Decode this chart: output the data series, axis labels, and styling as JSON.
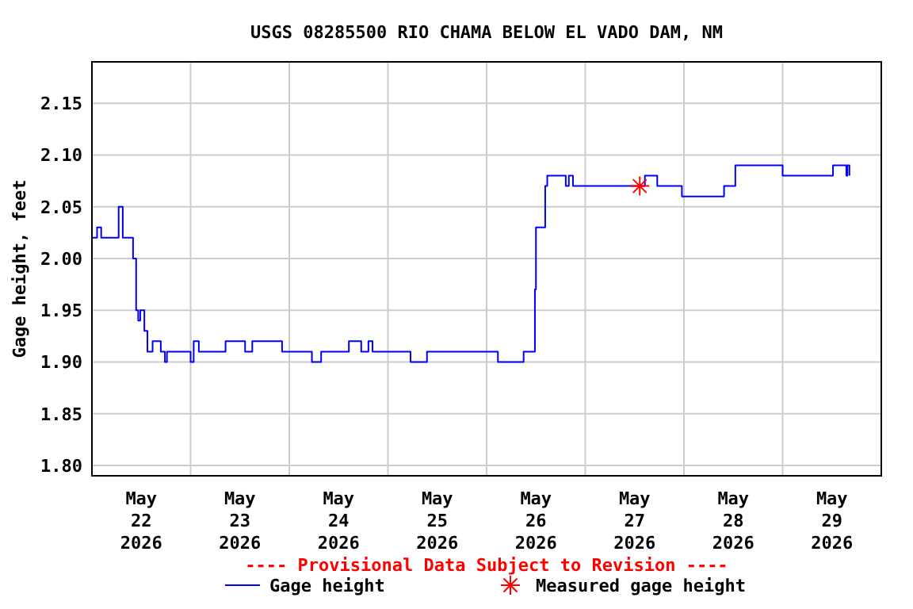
{
  "chart_data": {
    "type": "step",
    "title": "USGS 08285500 RIO CHAMA BELOW EL VADO DAM, NM",
    "ylabel": "Gage height, feet",
    "annotations": [
      "---- Provisional Data Subject to Revision ----"
    ],
    "xlim": [
      "2026-05-22T00:00",
      "2026-05-30T00:00"
    ],
    "xticks": [
      {
        "value": "2026-05-22T12:00",
        "label": "May 22 2026"
      },
      {
        "value": "2026-05-23T00:00",
        "label": null
      },
      {
        "value": "2026-05-23T12:00",
        "label": "May 23 2026"
      },
      {
        "value": "2026-05-24T00:00",
        "label": null
      },
      {
        "value": "2026-05-24T12:00",
        "label": "May 24 2026"
      },
      {
        "value": "2026-05-25T00:00",
        "label": null
      },
      {
        "value": "2026-05-25T12:00",
        "label": "May 25 2026"
      },
      {
        "value": "2026-05-26T00:00",
        "label": null
      },
      {
        "value": "2026-05-26T12:00",
        "label": "May 26 2026"
      },
      {
        "value": "2026-05-27T00:00",
        "label": null
      },
      {
        "value": "2026-05-27T12:00",
        "label": "May 27 2026"
      },
      {
        "value": "2026-05-28T00:00",
        "label": null
      },
      {
        "value": "2026-05-28T12:00",
        "label": "May 28 2026"
      },
      {
        "value": "2026-05-29T00:00",
        "label": null
      },
      {
        "value": "2026-05-29T12:00",
        "label": "May 29 2026"
      }
    ],
    "ylim": [
      1.79,
      2.19
    ],
    "yticks": [
      {
        "value": 1.8,
        "label": "1.80"
      },
      {
        "value": 1.85,
        "label": "1.85"
      },
      {
        "value": 1.9,
        "label": "1.90"
      },
      {
        "value": 1.95,
        "label": "1.95"
      },
      {
        "value": 2.0,
        "label": "2.00"
      },
      {
        "value": 2.05,
        "label": "2.05"
      },
      {
        "value": 2.1,
        "label": "2.10"
      },
      {
        "value": 2.15,
        "label": "2.15"
      }
    ],
    "grid": true,
    "legend": "bottom",
    "series": [
      {
        "name": "Gage height",
        "color": "#0000ff",
        "marker": "none",
        "x": [
          "2026-05-22T00:00",
          "2026-05-22T01:15",
          "2026-05-22T02:15",
          "2026-05-22T06:30",
          "2026-05-22T07:30",
          "2026-05-22T10:00",
          "2026-05-22T10:45",
          "2026-05-22T11:15",
          "2026-05-22T11:45",
          "2026-05-22T12:45",
          "2026-05-22T13:30",
          "2026-05-22T14:45",
          "2026-05-22T16:45",
          "2026-05-22T17:45",
          "2026-05-22T18:15",
          "2026-05-23T00:00",
          "2026-05-23T00:45",
          "2026-05-23T02:00",
          "2026-05-23T08:30",
          "2026-05-23T13:15",
          "2026-05-23T15:00",
          "2026-05-23T22:15",
          "2026-05-24T05:30",
          "2026-05-24T07:45",
          "2026-05-24T14:30",
          "2026-05-24T17:30",
          "2026-05-24T19:15",
          "2026-05-24T20:15",
          "2026-05-25T05:30",
          "2026-05-25T09:30",
          "2026-05-26T02:45",
          "2026-05-26T09:00",
          "2026-05-26T11:45",
          "2026-05-26T12:00",
          "2026-05-26T14:15",
          "2026-05-26T14:45",
          "2026-05-26T19:15",
          "2026-05-26T20:00",
          "2026-05-26T21:00",
          "2026-05-27T14:30",
          "2026-05-27T17:30",
          "2026-05-27T23:30",
          "2026-05-28T09:45",
          "2026-05-28T12:30",
          "2026-05-29T00:00",
          "2026-05-29T12:15",
          "2026-05-29T15:30",
          "2026-05-29T15:45",
          "2026-05-29T16:15"
        ],
        "values": [
          2.02,
          2.03,
          2.02,
          2.05,
          2.02,
          2.0,
          1.95,
          1.94,
          1.95,
          1.93,
          1.91,
          1.92,
          1.91,
          1.9,
          1.91,
          1.9,
          1.92,
          1.91,
          1.92,
          1.91,
          1.92,
          1.91,
          1.9,
          1.91,
          1.92,
          1.91,
          1.92,
          1.91,
          1.9,
          1.91,
          1.9,
          1.91,
          1.97,
          2.03,
          2.07,
          2.08,
          2.07,
          2.08,
          2.07,
          2.08,
          2.07,
          2.06,
          2.07,
          2.09,
          2.08,
          2.09,
          2.08,
          2.09,
          2.08
        ]
      },
      {
        "name": "Measured gage height",
        "type": "scatter",
        "color": "#ff0000",
        "marker": "cross",
        "x": [
          "2026-05-27T13:15"
        ],
        "values": [
          2.07
        ]
      }
    ]
  }
}
